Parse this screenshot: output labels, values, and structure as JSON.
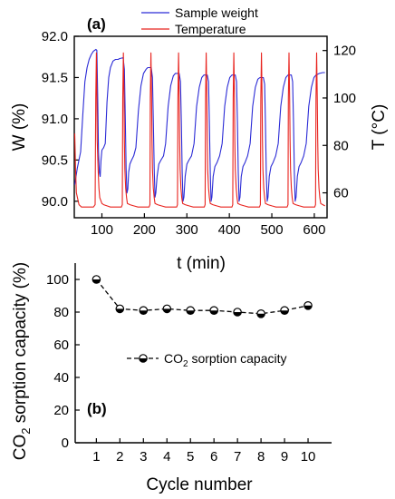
{
  "chart_data": [
    {
      "type": "line",
      "panel_label": "(a)",
      "xlabel": "t (min)",
      "ylabel_left": "W (%)",
      "ylabel_right": "T (°C)",
      "xlim": [
        35,
        630
      ],
      "ylim_left": [
        89.8,
        92.0
      ],
      "ylim_right": [
        49.5,
        126
      ],
      "xticks": [
        100,
        200,
        300,
        400,
        500,
        600
      ],
      "yticks_left": [
        90.0,
        90.5,
        91.0,
        91.5,
        92.0
      ],
      "yticks_right": [
        60,
        80,
        100,
        120
      ],
      "legend_position": "top",
      "series": [
        {
          "name": "Sample weight",
          "axis": "left",
          "color": "#2b2bd6",
          "x": [
            36,
            42,
            50,
            55,
            60,
            65,
            70,
            75,
            80,
            86,
            88,
            90,
            92,
            94,
            96,
            98,
            100,
            104,
            108,
            112,
            116,
            120,
            126,
            132,
            138,
            142,
            150,
            153,
            155,
            157,
            159,
            161,
            163,
            166,
            170,
            175,
            180,
            186,
            192,
            198,
            204,
            208,
            216,
            219,
            221,
            223,
            225,
            227,
            230,
            234,
            239,
            245,
            250,
            256,
            262,
            268,
            273,
            282,
            285,
            287,
            289,
            291,
            293,
            296,
            300,
            305,
            311,
            317,
            323,
            329,
            335,
            340,
            348,
            351,
            353,
            355,
            357,
            359,
            362,
            366,
            371,
            377,
            383,
            389,
            395,
            401,
            406,
            414,
            417,
            419,
            421,
            423,
            425,
            428,
            432,
            437,
            443,
            449,
            455,
            461,
            467,
            472,
            480,
            483,
            485,
            487,
            489,
            491,
            494,
            498,
            503,
            509,
            515,
            521,
            527,
            533,
            538,
            546,
            549,
            551,
            553,
            555,
            557,
            560,
            564,
            569,
            575,
            581,
            587,
            593,
            599,
            604,
            612,
            620,
            625
          ],
          "y": [
            90.2,
            90.4,
            90.6,
            91.05,
            91.45,
            91.62,
            91.72,
            91.78,
            91.82,
            91.84,
            91.83,
            91.3,
            90.6,
            90.35,
            90.3,
            90.5,
            90.62,
            90.65,
            90.7,
            91.2,
            91.5,
            91.62,
            91.7,
            91.72,
            91.72,
            91.73,
            91.74,
            91.6,
            91.0,
            90.4,
            90.1,
            90.15,
            90.35,
            90.45,
            90.5,
            90.55,
            90.65,
            91.1,
            91.4,
            91.55,
            91.6,
            91.62,
            91.62,
            91.5,
            91.0,
            90.4,
            90.05,
            90.1,
            90.3,
            90.45,
            90.5,
            90.55,
            90.7,
            91.15,
            91.4,
            91.52,
            91.55,
            91.55,
            91.45,
            90.95,
            90.35,
            90.0,
            90.05,
            90.3,
            90.45,
            90.5,
            90.55,
            90.7,
            91.15,
            91.38,
            91.5,
            91.53,
            91.53,
            91.45,
            90.95,
            90.35,
            90.0,
            90.05,
            90.3,
            90.42,
            90.47,
            90.55,
            90.7,
            91.15,
            91.38,
            91.5,
            91.53,
            91.53,
            91.45,
            90.95,
            90.35,
            90.0,
            90.05,
            90.3,
            90.42,
            90.47,
            90.55,
            90.7,
            91.15,
            91.38,
            91.48,
            91.5,
            91.5,
            91.42,
            90.95,
            90.35,
            90.0,
            90.05,
            90.3,
            90.42,
            90.47,
            90.55,
            90.7,
            91.15,
            91.38,
            91.5,
            91.53,
            91.53,
            91.45,
            90.95,
            90.35,
            90.0,
            90.05,
            90.3,
            90.42,
            90.47,
            90.55,
            90.7,
            91.15,
            91.38,
            91.5,
            91.53,
            91.55,
            91.56,
            91.56
          ]
        },
        {
          "name": "Temperature",
          "axis": "right",
          "color": "#e8231e",
          "x": [
            36,
            38,
            40,
            46,
            52,
            60,
            70,
            80,
            84,
            85.5,
            87,
            88,
            89,
            91,
            93,
            95,
            100,
            104,
            112,
            120,
            130,
            140,
            146,
            148,
            149,
            150.5,
            152,
            153,
            154,
            156,
            158,
            160,
            166,
            175,
            185,
            195,
            205,
            211,
            213,
            214,
            215.5,
            217,
            218,
            219,
            221,
            223,
            225,
            231,
            240,
            250,
            260,
            270,
            276,
            278,
            279,
            280.5,
            282,
            283,
            284,
            286,
            288,
            290,
            296,
            305,
            315,
            325,
            335,
            341,
            343,
            344,
            345.5,
            347,
            348,
            349,
            351,
            353,
            355,
            361,
            370,
            380,
            390,
            400,
            406,
            408,
            409,
            410.5,
            412,
            413,
            414,
            416,
            418,
            420,
            426,
            435,
            445,
            455,
            465,
            471,
            473,
            474,
            475.5,
            477,
            478,
            479,
            481,
            483,
            485,
            491,
            500,
            510,
            520,
            530,
            536,
            538,
            539,
            540.5,
            542,
            543,
            544,
            546,
            548,
            550,
            556,
            565,
            575,
            585,
            595,
            601,
            603,
            604,
            605.5,
            607,
            608,
            609,
            611,
            613,
            615,
            620,
            625
          ],
          "y": [
            85,
            70,
            60,
            55,
            54,
            54,
            54,
            54,
            55,
            100,
            119,
            100,
            82,
            70,
            62,
            58,
            55.5,
            55,
            54.5,
            54,
            54,
            54,
            54,
            55,
            100,
            119,
            100,
            82,
            70,
            62,
            58,
            55.5,
            55,
            54.5,
            54,
            54,
            54,
            54,
            55,
            100,
            119,
            100,
            82,
            70,
            62,
            58,
            55.5,
            55,
            54.5,
            54,
            54,
            54,
            54,
            55,
            100,
            119,
            100,
            82,
            70,
            62,
            58,
            55.5,
            55,
            54.5,
            54,
            54,
            54,
            54,
            55,
            100,
            119,
            100,
            82,
            70,
            62,
            58,
            55.5,
            55,
            54.5,
            54,
            54,
            54,
            54,
            55,
            100,
            119,
            100,
            82,
            70,
            62,
            58,
            55.5,
            55,
            54.5,
            54,
            54,
            54,
            54,
            55,
            100,
            119,
            100,
            82,
            70,
            62,
            58,
            55.5,
            55,
            54.5,
            54,
            54,
            54,
            54,
            55,
            100,
            119,
            100,
            82,
            70,
            62,
            58,
            55.5,
            55,
            54.5,
            54,
            54,
            54,
            54,
            55,
            100,
            119,
            100,
            82,
            70,
            62,
            58,
            55.5,
            55,
            54.5
          ]
        }
      ]
    },
    {
      "type": "line",
      "panel_label": "(b)",
      "xlabel": "Cycle number",
      "ylabel_main": "CO",
      "ylabel_sub": "2",
      "ylabel_rest": " sorption capacity (%)",
      "xlim": [
        0.1,
        11.0
      ],
      "ylim": [
        0,
        110
      ],
      "xticks": [
        1,
        2,
        3,
        4,
        5,
        6,
        7,
        8,
        9,
        10
      ],
      "yticks": [
        0,
        20,
        40,
        60,
        80,
        100
      ],
      "legend_position": "center-right",
      "series": [
        {
          "legend_main": "CO",
          "legend_sub": "2",
          "legend_rest": " sorption capacity",
          "color": "#000000",
          "line_style": "dashed",
          "marker": "half-filled-circle",
          "x": [
            1,
            2,
            3,
            4,
            5,
            6,
            7,
            8,
            9,
            10
          ],
          "y": [
            100,
            82,
            81,
            82,
            81,
            81,
            80,
            79,
            81,
            84
          ]
        }
      ]
    }
  ]
}
